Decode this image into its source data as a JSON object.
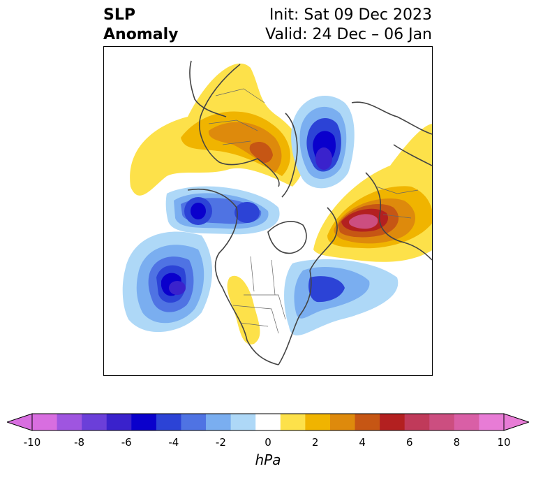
{
  "title": {
    "left_line1": "SLP",
    "left_line2": "Anomaly",
    "right_line1": "Init: Sat 09 Dec 2023",
    "right_line2": "Valid: 24 Dec – 06 Jan"
  },
  "colorbar": {
    "unit": "hPa",
    "ticks": [
      "-10",
      "-8",
      "-6",
      "-4",
      "-2",
      "0",
      "2",
      "4",
      "6",
      "8",
      "10"
    ],
    "colors": [
      "#d86ee0",
      "#9f55e0",
      "#6b3fd9",
      "#3a22cc",
      "#0a00cc",
      "#2c43d6",
      "#4f73e3",
      "#7aaef0",
      "#aed8f7",
      "#ffffff",
      "#fde14a",
      "#f0b400",
      "#de8a0c",
      "#c65614",
      "#b32020",
      "#c03a5a",
      "#cc4e80",
      "#d95fa6",
      "#e87cd6"
    ],
    "extend_low_color": "#d86ee0",
    "extend_high_color": "#e87cd6"
  }
}
